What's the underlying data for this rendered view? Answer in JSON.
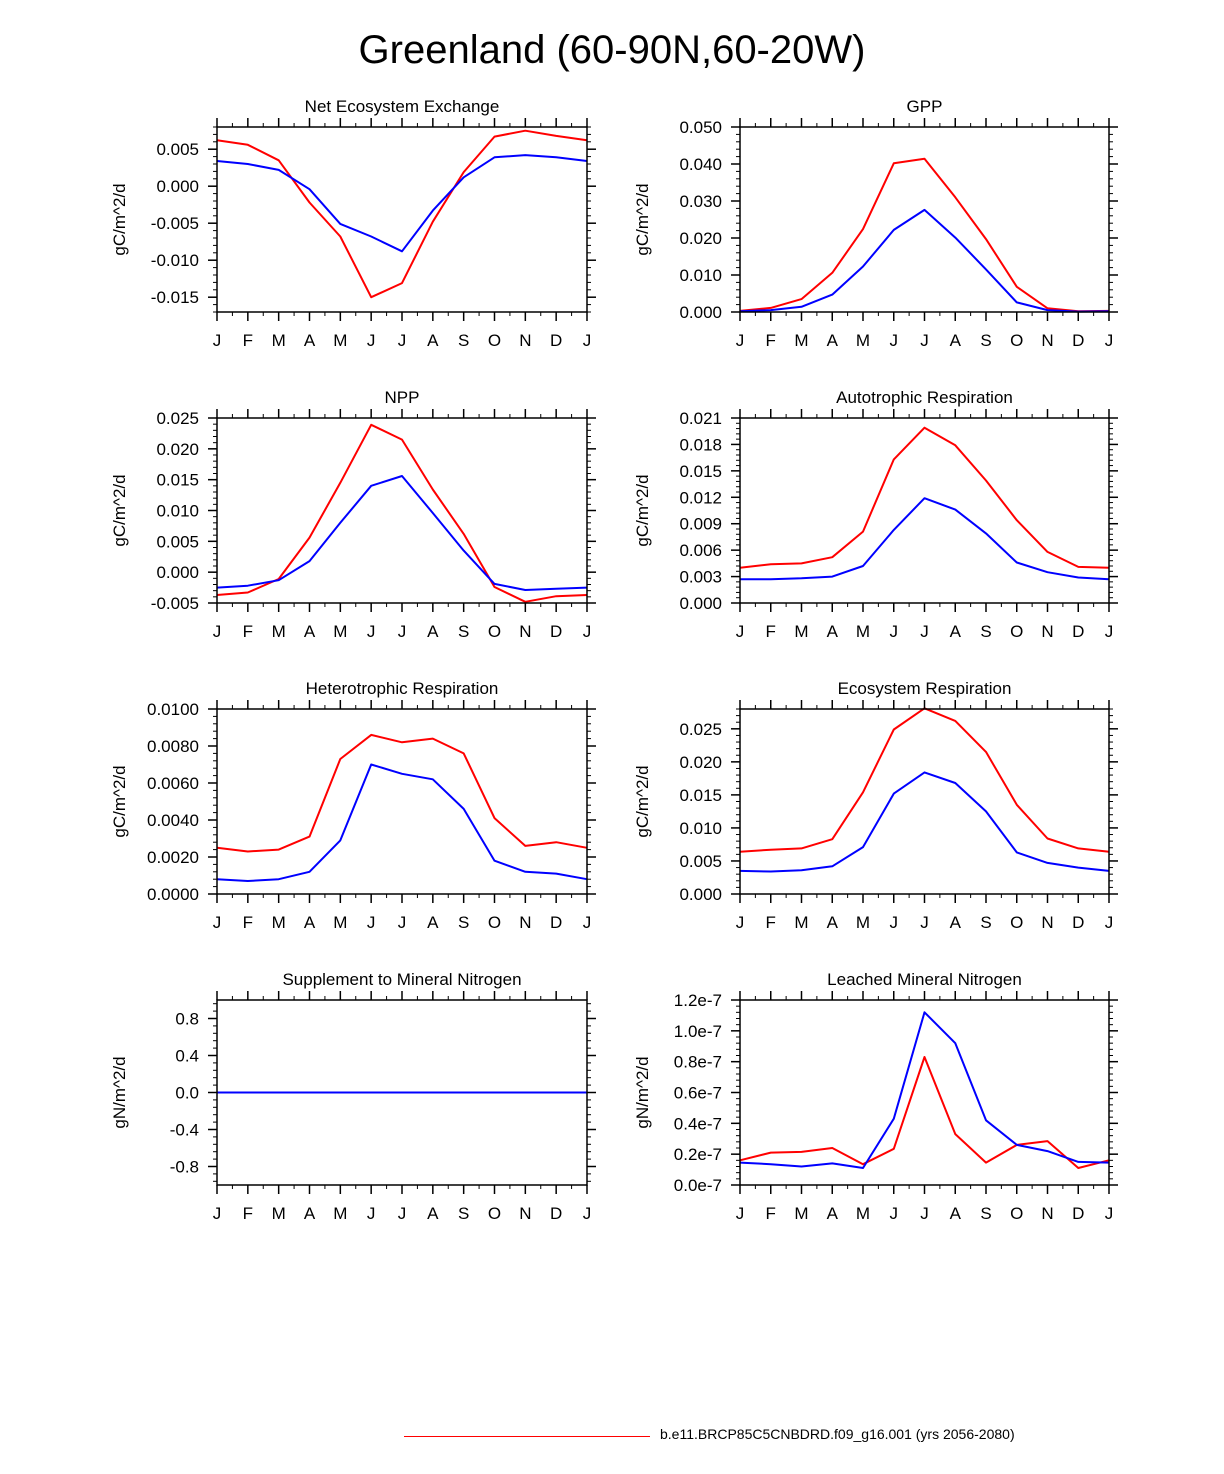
{
  "figure_title": "Greenland (60-90N,60-20W)",
  "legend": {
    "label": "b.e11.BRCP85C5CNBDRD.f09_g16.001 (yrs 2056-2080)",
    "color": "#ff0000"
  },
  "colors": {
    "series_red": "#ff0000",
    "series_blue": "#0000ff",
    "axis": "#000000"
  },
  "chart_data": [
    {
      "type": "line",
      "title": "Net Ecosystem Exchange",
      "ylabel": "gC/m^2/d",
      "xlabel": "",
      "categories": [
        "J",
        "F",
        "M",
        "A",
        "M",
        "J",
        "J",
        "A",
        "S",
        "O",
        "N",
        "D",
        "J"
      ],
      "ylim": [
        -0.017,
        0.008
      ],
      "yticks": [
        -0.015,
        -0.01,
        -0.005,
        0.0,
        0.005
      ],
      "ytick_labels": [
        "-0.015",
        "-0.010",
        "-0.005",
        "0.000",
        "0.005"
      ],
      "series": [
        {
          "name": "red",
          "values": [
            0.0062,
            0.0056,
            0.0035,
            -0.0022,
            -0.0068,
            -0.015,
            -0.0131,
            -0.0048,
            0.0019,
            0.0067,
            0.0075,
            0.0068,
            0.0062
          ]
        },
        {
          "name": "blue",
          "values": [
            0.0034,
            0.003,
            0.0022,
            -0.0004,
            -0.0051,
            -0.0068,
            -0.0088,
            -0.0033,
            0.0012,
            0.0039,
            0.0042,
            0.0039,
            0.0034
          ]
        }
      ]
    },
    {
      "type": "line",
      "title": "GPP",
      "ylabel": "gC/m^2/d",
      "xlabel": "",
      "categories": [
        "J",
        "F",
        "M",
        "A",
        "M",
        "J",
        "J",
        "A",
        "S",
        "O",
        "N",
        "D",
        "J"
      ],
      "ylim": [
        0,
        0.05
      ],
      "yticks": [
        0.0,
        0.01,
        0.02,
        0.03,
        0.04,
        0.05
      ],
      "ytick_labels": [
        "0.000",
        "0.010",
        "0.020",
        "0.030",
        "0.040",
        "0.050"
      ],
      "series": [
        {
          "name": "red",
          "values": [
            0.0003,
            0.0011,
            0.0035,
            0.0106,
            0.0224,
            0.0402,
            0.0414,
            0.031,
            0.0197,
            0.0068,
            0.001,
            0.0002,
            0.0003
          ]
        },
        {
          "name": "blue",
          "values": [
            0.0002,
            0.0005,
            0.0014,
            0.0047,
            0.0123,
            0.0222,
            0.0276,
            0.0201,
            0.0115,
            0.0026,
            0.0005,
            0.0001,
            0.0002
          ]
        }
      ]
    },
    {
      "type": "line",
      "title": "NPP",
      "ylabel": "gC/m^2/d",
      "xlabel": "",
      "categories": [
        "J",
        "F",
        "M",
        "A",
        "M",
        "J",
        "J",
        "A",
        "S",
        "O",
        "N",
        "D",
        "J"
      ],
      "ylim": [
        -0.005,
        0.025
      ],
      "yticks": [
        -0.005,
        0.0,
        0.005,
        0.01,
        0.015,
        0.02,
        0.025
      ],
      "ytick_labels": [
        "-0.005",
        "0.000",
        "0.005",
        "0.010",
        "0.015",
        "0.020",
        "0.025"
      ],
      "series": [
        {
          "name": "red",
          "values": [
            -0.0037,
            -0.0033,
            -0.0011,
            0.0056,
            0.0145,
            0.0239,
            0.0215,
            0.0134,
            0.0062,
            -0.0024,
            -0.0048,
            -0.0039,
            -0.0037
          ]
        },
        {
          "name": "blue",
          "values": [
            -0.0025,
            -0.0022,
            -0.0013,
            0.0018,
            0.008,
            0.014,
            0.0156,
            0.0096,
            0.0035,
            -0.0019,
            -0.0029,
            -0.0027,
            -0.0025
          ]
        }
      ]
    },
    {
      "type": "line",
      "title": "Autotrophic Respiration",
      "ylabel": "gC/m^2/d",
      "xlabel": "",
      "categories": [
        "J",
        "F",
        "M",
        "A",
        "M",
        "J",
        "J",
        "A",
        "S",
        "O",
        "N",
        "D",
        "J"
      ],
      "ylim": [
        0,
        0.021
      ],
      "yticks": [
        0.0,
        0.003,
        0.006,
        0.009,
        0.012,
        0.015,
        0.018,
        0.021
      ],
      "ytick_labels": [
        "0.000",
        "0.003",
        "0.006",
        "0.009",
        "0.012",
        "0.015",
        "0.018",
        "0.021"
      ],
      "series": [
        {
          "name": "red",
          "values": [
            0.004,
            0.0044,
            0.0045,
            0.0052,
            0.0081,
            0.0163,
            0.0199,
            0.0179,
            0.0139,
            0.0094,
            0.0058,
            0.0041,
            0.004
          ]
        },
        {
          "name": "blue",
          "values": [
            0.0027,
            0.0027,
            0.0028,
            0.003,
            0.0042,
            0.0083,
            0.0119,
            0.0106,
            0.0079,
            0.0046,
            0.0035,
            0.0029,
            0.0027
          ]
        }
      ]
    },
    {
      "type": "line",
      "title": "Heterotrophic Respiration",
      "ylabel": "gC/m^2/d",
      "xlabel": "",
      "categories": [
        "J",
        "F",
        "M",
        "A",
        "M",
        "J",
        "J",
        "A",
        "S",
        "O",
        "N",
        "D",
        "J"
      ],
      "ylim": [
        0,
        0.01
      ],
      "yticks": [
        0.0,
        0.002,
        0.004,
        0.006,
        0.008,
        0.01
      ],
      "ytick_labels": [
        "0.0000",
        "0.0020",
        "0.0040",
        "0.0060",
        "0.0080",
        "0.0100"
      ],
      "series": [
        {
          "name": "red",
          "values": [
            0.0025,
            0.0023,
            0.0024,
            0.0031,
            0.0073,
            0.0086,
            0.0082,
            0.0084,
            0.0076,
            0.0041,
            0.0026,
            0.0028,
            0.0025
          ]
        },
        {
          "name": "blue",
          "values": [
            0.0008,
            0.0007,
            0.0008,
            0.0012,
            0.0029,
            0.007,
            0.0065,
            0.0062,
            0.0046,
            0.0018,
            0.0012,
            0.0011,
            0.0008
          ]
        }
      ]
    },
    {
      "type": "line",
      "title": "Ecosystem Respiration",
      "ylabel": "gC/m^2/d",
      "xlabel": "",
      "categories": [
        "J",
        "F",
        "M",
        "A",
        "M",
        "J",
        "J",
        "A",
        "S",
        "O",
        "N",
        "D",
        "J"
      ],
      "ylim": [
        0,
        0.028
      ],
      "yticks": [
        0.0,
        0.005,
        0.01,
        0.015,
        0.02,
        0.025
      ],
      "ytick_labels": [
        "0.000",
        "0.005",
        "0.010",
        "0.015",
        "0.020",
        "0.025"
      ],
      "series": [
        {
          "name": "red",
          "values": [
            0.0064,
            0.0067,
            0.0069,
            0.0083,
            0.0154,
            0.0249,
            0.0281,
            0.0262,
            0.0215,
            0.0135,
            0.0084,
            0.0069,
            0.0064
          ]
        },
        {
          "name": "blue",
          "values": [
            0.0035,
            0.0034,
            0.0036,
            0.0042,
            0.0071,
            0.0152,
            0.0184,
            0.0168,
            0.0125,
            0.0063,
            0.0047,
            0.004,
            0.0035
          ]
        }
      ]
    },
    {
      "type": "line",
      "title": "Supplement to Mineral Nitrogen",
      "ylabel": "gN/m^2/d",
      "xlabel": "",
      "categories": [
        "J",
        "F",
        "M",
        "A",
        "M",
        "J",
        "J",
        "A",
        "S",
        "O",
        "N",
        "D",
        "J"
      ],
      "ylim": [
        -1.0,
        1.0
      ],
      "yticks": [
        -0.8,
        -0.4,
        0.0,
        0.4,
        0.8
      ],
      "ytick_labels": [
        "-0.8",
        "-0.4",
        "0.0",
        "0.4",
        "0.8"
      ],
      "series": [
        {
          "name": "red",
          "values": [
            0,
            0,
            0,
            0,
            0,
            0,
            0,
            0,
            0,
            0,
            0,
            0,
            0
          ]
        },
        {
          "name": "blue",
          "values": [
            0,
            0,
            0,
            0,
            0,
            0,
            0,
            0,
            0,
            0,
            0,
            0,
            0
          ]
        }
      ]
    },
    {
      "type": "line",
      "title": "Leached Mineral Nitrogen",
      "ylabel": "gN/m^2/d",
      "xlabel": "",
      "categories": [
        "J",
        "F",
        "M",
        "A",
        "M",
        "J",
        "J",
        "A",
        "S",
        "O",
        "N",
        "D",
        "J"
      ],
      "ylim": [
        0,
        1.2e-07
      ],
      "yticks": [
        0.0,
        2e-08,
        4e-08,
        6e-08,
        8e-08,
        1e-07,
        1.2e-07
      ],
      "ytick_labels": [
        "0.0e-7",
        "0.2e-7",
        "0.4e-7",
        "0.6e-7",
        "0.8e-7",
        "1.0e-7",
        "1.2e-7"
      ],
      "series": [
        {
          "name": "red",
          "values": [
            1.6e-08,
            2.1e-08,
            2.15e-08,
            2.4e-08,
            1.35e-08,
            2.35e-08,
            8.3e-08,
            3.3e-08,
            1.45e-08,
            2.6e-08,
            2.85e-08,
            1.1e-08,
            1.6e-08
          ]
        },
        {
          "name": "blue",
          "values": [
            1.45e-08,
            1.35e-08,
            1.2e-08,
            1.4e-08,
            1.1e-08,
            4.3e-08,
            1.12e-07,
            9.2e-08,
            4.2e-08,
            2.6e-08,
            2.2e-08,
            1.5e-08,
            1.45e-08
          ]
        }
      ]
    }
  ]
}
